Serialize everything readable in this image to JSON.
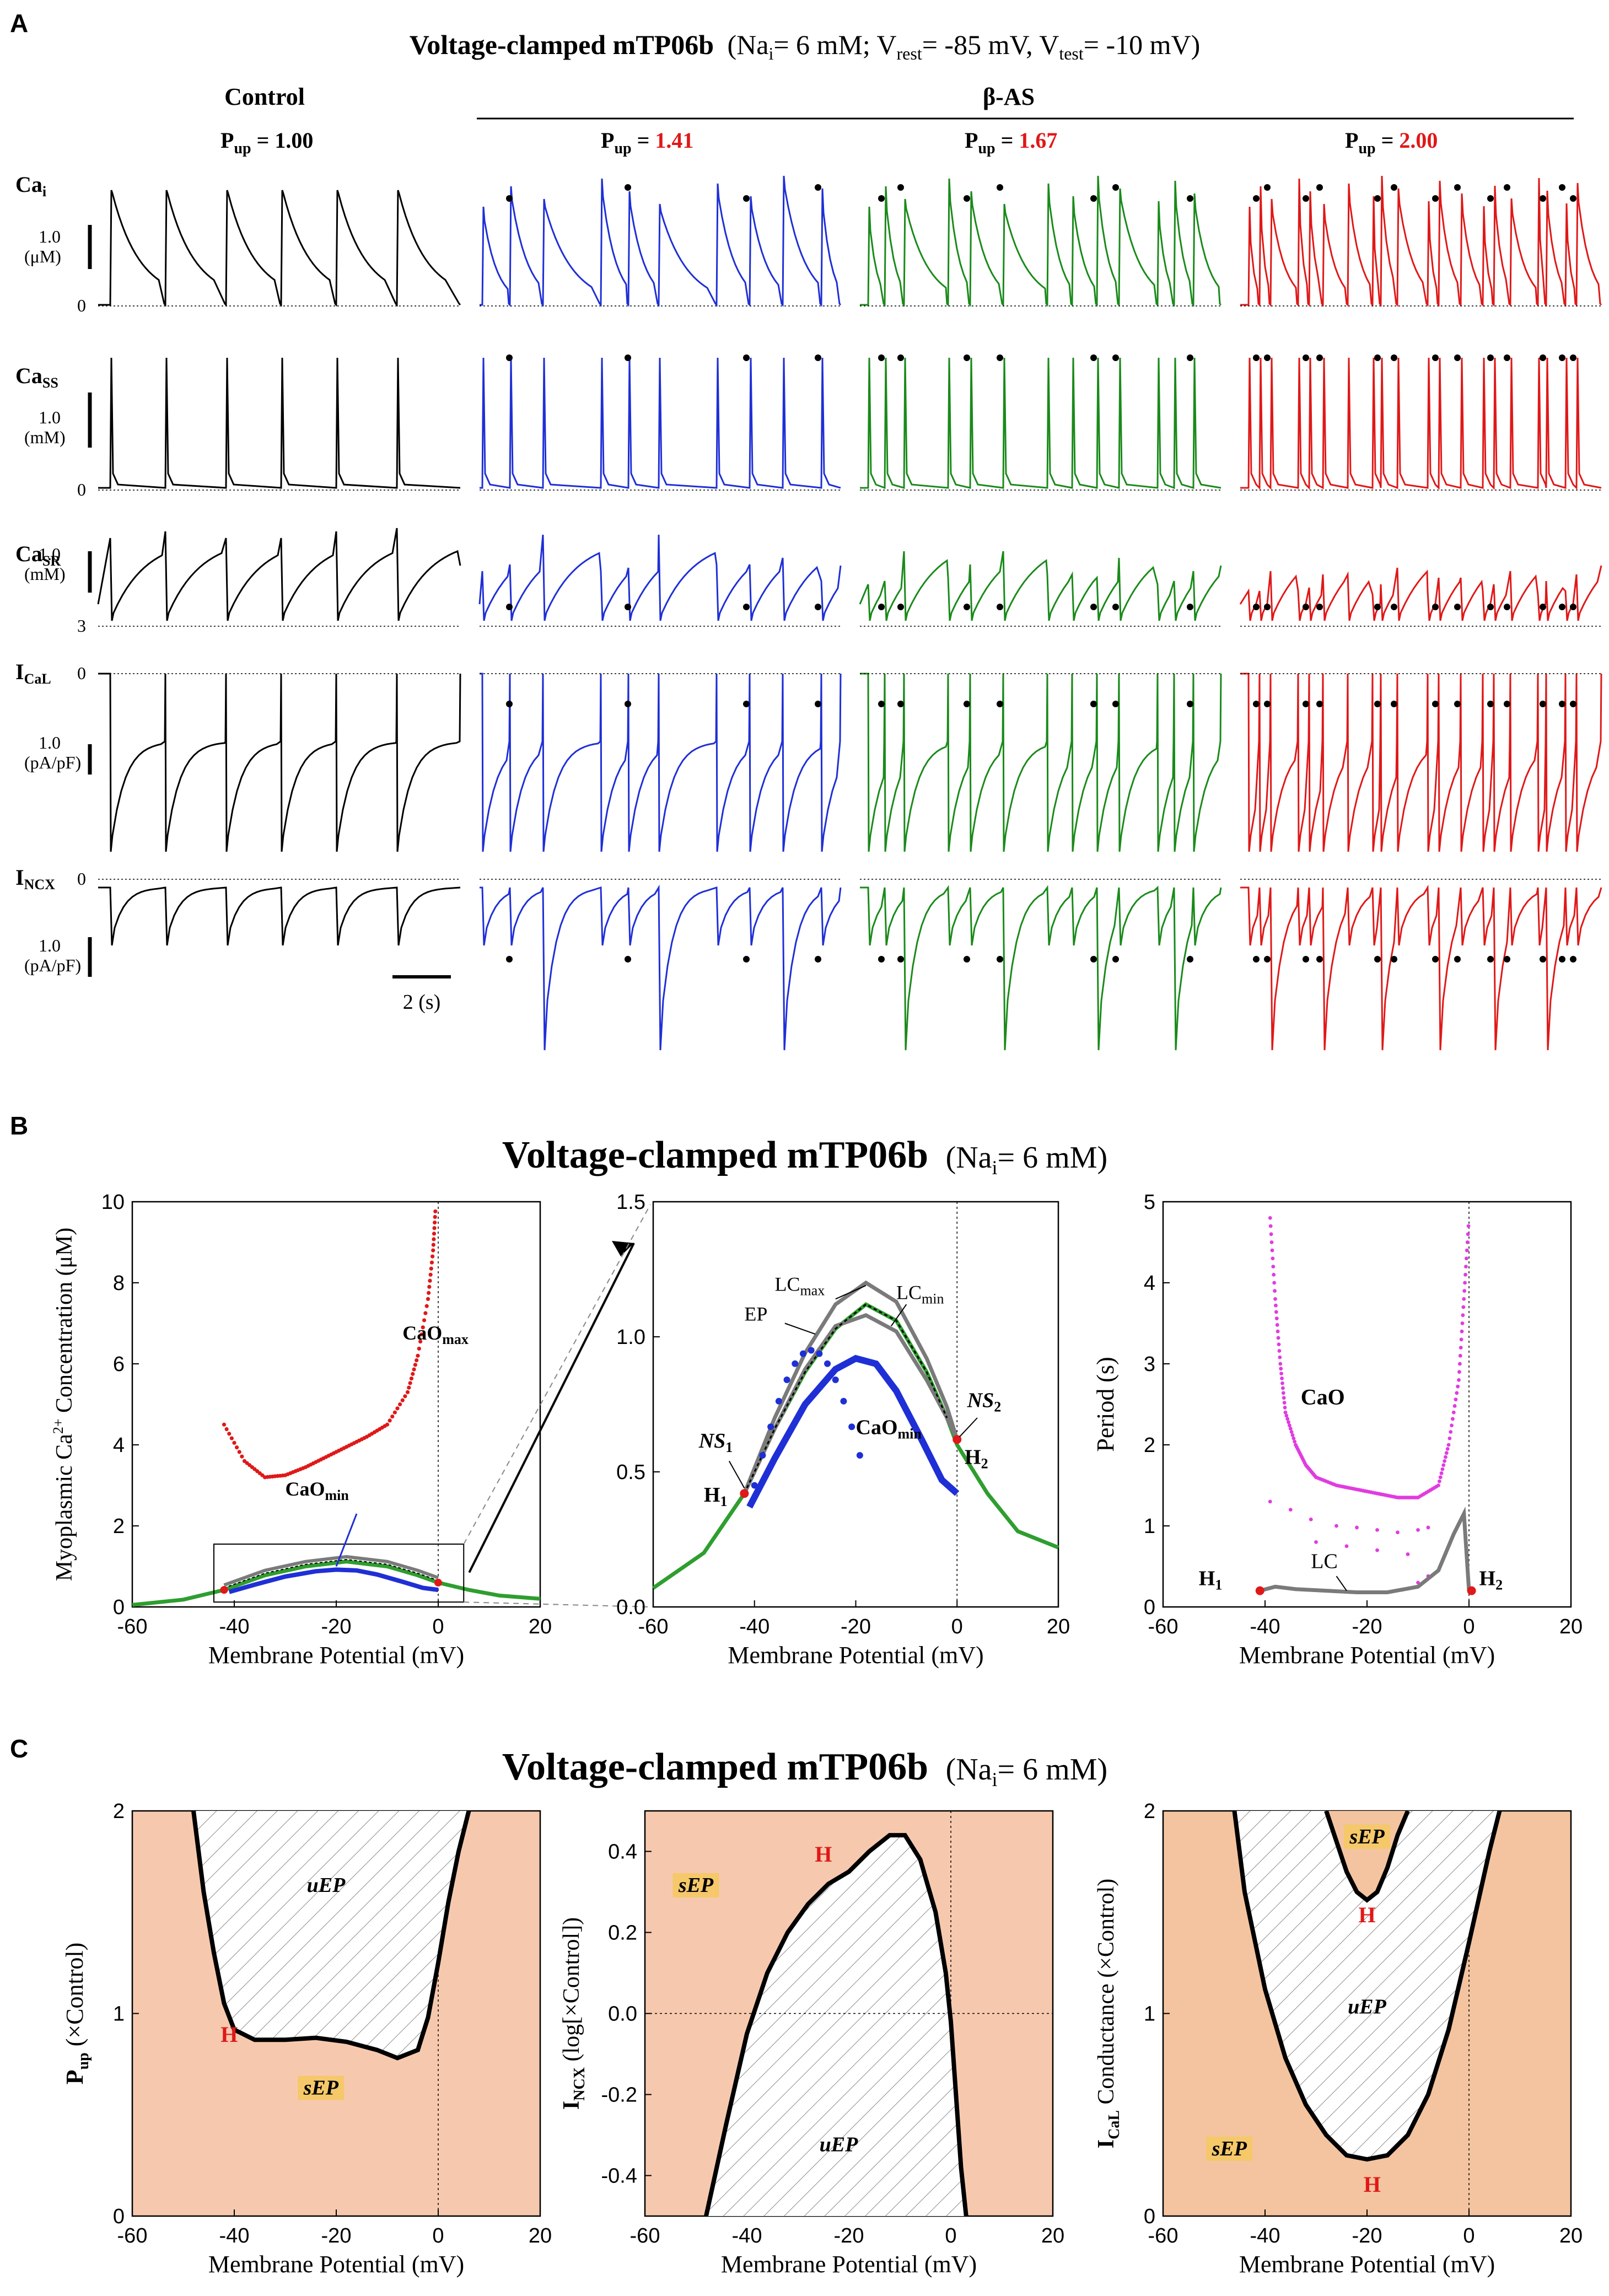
{
  "figure": {
    "panels": [
      "A",
      "B",
      "C"
    ],
    "colors": {
      "control": "#000000",
      "p141": "#1f2fd6",
      "p167": "#1a8a1a",
      "p200": "#e01818",
      "gray": "#7a7a7a",
      "green": "#2e9e2e",
      "magenta": "#e03ce0",
      "stable": "#f6c9ae",
      "stable2": "#f3c49f",
      "badge": "#f5c86a",
      "hlabel": "#e01818"
    }
  },
  "panelA": {
    "title_bold": "Voltage-clamped mTP06b",
    "title_rest": "(Na",
    "title_sub": "i",
    "title_rest2": "= 6 mM; V",
    "title_sub2": "rest",
    "title_rest3": "= -85 mV, V",
    "title_sub3": "test",
    "title_rest4": "= -10 mV)",
    "col_control": "Control",
    "col_bas": "β-AS",
    "pup_label": "P",
    "pup_sub": "up",
    "pup_values": [
      "= 1.00",
      "= 1.41",
      "= 1.67",
      "= 2.00"
    ],
    "rows": [
      {
        "main": "Ca",
        "sub": "i",
        "scale": "1.0",
        "unit": "(μM)",
        "zero": "0"
      },
      {
        "main": "Ca",
        "sub": "SS",
        "scale": "1.0",
        "unit": "(mM)",
        "zero": "0"
      },
      {
        "main": "Ca",
        "sub": "SR",
        "scale": "1.0",
        "unit": "(mM)",
        "zero": "3"
      },
      {
        "main": "I",
        "sub": "CaL",
        "scale": "1.0",
        "unit": "(pA/pF)",
        "zero": "0"
      },
      {
        "main": "I",
        "sub": "NCX",
        "scale": "1.0",
        "unit": "(pA/pF)",
        "zero": "0"
      }
    ],
    "time_scale": "2 (s)"
  },
  "chart_data": [
    {
      "type": "line",
      "id": "B1",
      "title": "Voltage-clamped mTP06b (Nai = 6 mM)",
      "xlabel": "Membrane Potential (mV)",
      "ylabel": "Myoplasmic Ca2+ Concentration (μM)",
      "xlim": [
        -60,
        20
      ],
      "ylim": [
        0,
        10
      ],
      "xticks": [
        "-60",
        "-40",
        "-20",
        "0",
        "20"
      ],
      "yticks": [
        "0",
        "2",
        "4",
        "6",
        "8",
        "10"
      ],
      "annotations": [
        "CaOmax",
        "CaOmin"
      ],
      "series": [
        {
          "name": "CaOmax",
          "x": [
            -42,
            -38,
            -34,
            -30,
            -26,
            -22,
            -18,
            -14,
            -10,
            -6,
            -4,
            -2,
            -1,
            -0.5
          ],
          "values": [
            4.5,
            3.6,
            3.2,
            3.25,
            3.45,
            3.7,
            3.95,
            4.2,
            4.5,
            5.3,
            6.2,
            7.6,
            8.8,
            9.9
          ]
        },
        {
          "name": "EP",
          "x": [
            -60,
            -50,
            -42,
            -34,
            -26,
            -18,
            -10,
            -4,
            0,
            6,
            12,
            20
          ],
          "values": [
            0.05,
            0.18,
            0.42,
            0.78,
            1.0,
            1.12,
            1.0,
            0.78,
            0.6,
            0.42,
            0.28,
            0.2
          ]
        },
        {
          "name": "CaOmin",
          "x": [
            -41,
            -36,
            -30,
            -24,
            -20,
            -16,
            -12,
            -7,
            -3,
            0
          ],
          "values": [
            0.37,
            0.55,
            0.75,
            0.88,
            0.92,
            0.9,
            0.8,
            0.62,
            0.47,
            0.42
          ]
        }
      ]
    },
    {
      "type": "line",
      "id": "B2",
      "xlabel": "Membrane Potential (mV)",
      "xlim": [
        -60,
        20
      ],
      "ylim": [
        0,
        1.5
      ],
      "xticks": [
        "-60",
        "-40",
        "-20",
        "0",
        "20"
      ],
      "yticks": [
        "0.0",
        "0.5",
        "1.0",
        "1.5"
      ],
      "annotations": [
        "LCmax",
        "LCmin",
        "EP",
        "NS1",
        "NS2",
        "CaOmin",
        "H1",
        "H2"
      ],
      "series": [
        {
          "name": "EP",
          "x": [
            -60,
            -50,
            -42,
            -36,
            -30,
            -24,
            -18,
            -12,
            -6,
            -2,
            0,
            6,
            12,
            20
          ],
          "values": [
            0.07,
            0.2,
            0.42,
            0.66,
            0.87,
            1.03,
            1.12,
            1.06,
            0.87,
            0.7,
            0.6,
            0.42,
            0.28,
            0.22
          ]
        },
        {
          "name": "LCmax",
          "x": [
            -42,
            -36,
            -30,
            -24,
            -18,
            -12,
            -6,
            -2,
            0
          ],
          "values": [
            0.42,
            0.7,
            0.94,
            1.12,
            1.2,
            1.13,
            0.92,
            0.74,
            0.62
          ]
        },
        {
          "name": "LCmin",
          "x": [
            -42,
            -36,
            -30,
            -24,
            -18,
            -12,
            -6,
            -2,
            0
          ],
          "values": [
            0.42,
            0.66,
            0.88,
            1.04,
            1.08,
            1.02,
            0.84,
            0.7,
            0.62
          ]
        },
        {
          "name": "CaOmin",
          "x": [
            -41,
            -36,
            -30,
            -24,
            -20,
            -16,
            -12,
            -7,
            -3,
            0
          ],
          "values": [
            0.37,
            0.55,
            0.75,
            0.88,
            0.92,
            0.9,
            0.8,
            0.62,
            0.47,
            0.42
          ]
        }
      ]
    },
    {
      "type": "scatter",
      "id": "B3",
      "xlabel": "Membrane Potential (mV)",
      "ylabel": "Period (s)",
      "xlim": [
        -60,
        20
      ],
      "ylim": [
        0,
        5
      ],
      "xticks": [
        "-60",
        "-40",
        "-20",
        "0",
        "20"
      ],
      "yticks": [
        "0",
        "1",
        "2",
        "3",
        "4",
        "5"
      ],
      "annotations": [
        "CaO",
        "LC",
        "H1",
        "H2"
      ],
      "series": [
        {
          "name": "CaO",
          "x": [
            -39,
            -38,
            -37,
            -36,
            -34,
            -32,
            -30,
            -26,
            -22,
            -18,
            -14,
            -10,
            -6,
            -4,
            -2,
            -1,
            0
          ],
          "values": [
            4.8,
            3.8,
            3.0,
            2.4,
            2.0,
            1.75,
            1.6,
            1.5,
            1.45,
            1.4,
            1.35,
            1.35,
            1.5,
            2.0,
            2.8,
            3.8,
            4.8
          ]
        },
        {
          "name": "LC",
          "x": [
            -41,
            -38,
            -34,
            -28,
            -22,
            -16,
            -10,
            -6,
            -3,
            -1,
            0
          ],
          "values": [
            0.2,
            0.25,
            0.22,
            0.2,
            0.18,
            0.18,
            0.25,
            0.45,
            0.9,
            1.15,
            0.2
          ]
        }
      ]
    },
    {
      "type": "area",
      "id": "C1",
      "title": "Voltage-clamped mTP06b (Nai = 6 mM)",
      "xlabel": "Membrane Potential (mV)",
      "ylabel": "Pup (×Control)",
      "xlim": [
        -60,
        20
      ],
      "ylim": [
        0,
        2
      ],
      "xticks": [
        "-60",
        "-40",
        "-20",
        "0",
        "20"
      ],
      "yticks": [
        "0",
        "1",
        "2"
      ],
      "annotations": [
        "uEP",
        "sEP",
        "H"
      ],
      "series": [
        {
          "name": "boundary",
          "x": [
            -48,
            -46,
            -44,
            -42,
            -40,
            -36,
            -30,
            -24,
            -18,
            -12,
            -8,
            -4,
            -2,
            0,
            2,
            4,
            6
          ],
          "values": [
            2.0,
            1.6,
            1.3,
            1.05,
            0.92,
            0.87,
            0.87,
            0.88,
            0.86,
            0.82,
            0.78,
            0.82,
            0.98,
            1.25,
            1.55,
            1.8,
            2.0
          ]
        }
      ]
    },
    {
      "type": "area",
      "id": "C2",
      "xlabel": "Membrane Potential (mV)",
      "ylabel": "INCX (log[×Control])",
      "xlim": [
        -60,
        20
      ],
      "ylim": [
        -0.5,
        0.5
      ],
      "xticks": [
        "-60",
        "-40",
        "-20",
        "0",
        "20"
      ],
      "yticks": [
        "-0.4",
        "-0.2",
        "0.0",
        "0.2",
        "0.4"
      ],
      "annotations": [
        "sEP",
        "uEP",
        "H"
      ],
      "series": [
        {
          "name": "boundary",
          "x": [
            -48,
            -44,
            -40,
            -36,
            -32,
            -28,
            -24,
            -20,
            -16,
            -12,
            -9,
            -6,
            -3,
            -1,
            0,
            1,
            2,
            3
          ],
          "values": [
            -0.5,
            -0.27,
            -0.05,
            0.1,
            0.2,
            0.27,
            0.32,
            0.35,
            0.4,
            0.44,
            0.44,
            0.38,
            0.25,
            0.1,
            -0.02,
            -0.2,
            -0.38,
            -0.5
          ]
        }
      ]
    },
    {
      "type": "area",
      "id": "C3",
      "xlabel": "Membrane Potential (mV)",
      "ylabel": "ICaL Conductance (×Control)",
      "xlim": [
        -60,
        20
      ],
      "ylim": [
        0,
        2
      ],
      "xticks": [
        "-60",
        "-40",
        "-20",
        "0",
        "20"
      ],
      "yticks": [
        "0",
        "1",
        "2"
      ],
      "annotations": [
        "sEP",
        "uEP",
        "H",
        "H",
        "sEP"
      ],
      "series": [
        {
          "name": "outer",
          "x": [
            -46,
            -44,
            -40,
            -36,
            -32,
            -28,
            -24,
            -20,
            -16,
            -12,
            -8,
            -4,
            0,
            4,
            6
          ],
          "values": [
            2.0,
            1.6,
            1.12,
            0.78,
            0.55,
            0.4,
            0.3,
            0.28,
            0.3,
            0.4,
            0.6,
            0.92,
            1.35,
            1.8,
            2.0
          ]
        },
        {
          "name": "inner",
          "x": [
            -28,
            -26,
            -24,
            -22,
            -20,
            -18,
            -16,
            -14,
            -12
          ],
          "values": [
            2.0,
            1.85,
            1.7,
            1.6,
            1.56,
            1.6,
            1.72,
            1.88,
            2.0
          ]
        }
      ]
    }
  ],
  "panelB": {
    "title_bold": "Voltage-clamped mTP06b",
    "title_rest": "(Na",
    "title_sub": "i",
    "title_rest2": "= 6 mM)",
    "ylabel_main": "Myoplasmic Ca",
    "ylabel_sup": "2+",
    "ylabel_rest": " Concentration (μM)",
    "lab_caomax": "CaO",
    "lab_caomax_sub": "max",
    "lab_caomin": "CaO",
    "lab_caomin_sub": "min",
    "lab_lcmax": "LC",
    "lab_lcmax_sub": "max",
    "lab_lcmin": "LC",
    "lab_lcmin_sub": "min",
    "lab_ep": "EP",
    "lab_ns": "NS",
    "lab_ns1_sub": "1",
    "lab_ns2_sub": "2",
    "lab_h": "H",
    "lab_h1_sub": "1",
    "lab_h2_sub": "2",
    "lab_cao": "CaO",
    "lab_lc": "LC",
    "period_label": "Period (s)",
    "xlabel": "Membrane Potential (mV)"
  },
  "panelC": {
    "title_bold": "Voltage-clamped mTP06b",
    "title_rest": "(Na",
    "title_sub": "i",
    "title_rest2": "= 6 mM)",
    "ylabel1_main": "P",
    "ylabel1_sub": "up",
    "ylabel1_rest": " (×Control)",
    "ylabel2_main": "I",
    "ylabel2_sub": "NCX",
    "ylabel2_rest": " (log[×Control])",
    "ylabel3_main": "I",
    "ylabel3_sub": "CaL",
    "ylabel3_rest": " Conductance (×Control)",
    "uep": "uEP",
    "sep": "sEP",
    "h": "H",
    "xlabel": "Membrane Potential (mV)"
  }
}
